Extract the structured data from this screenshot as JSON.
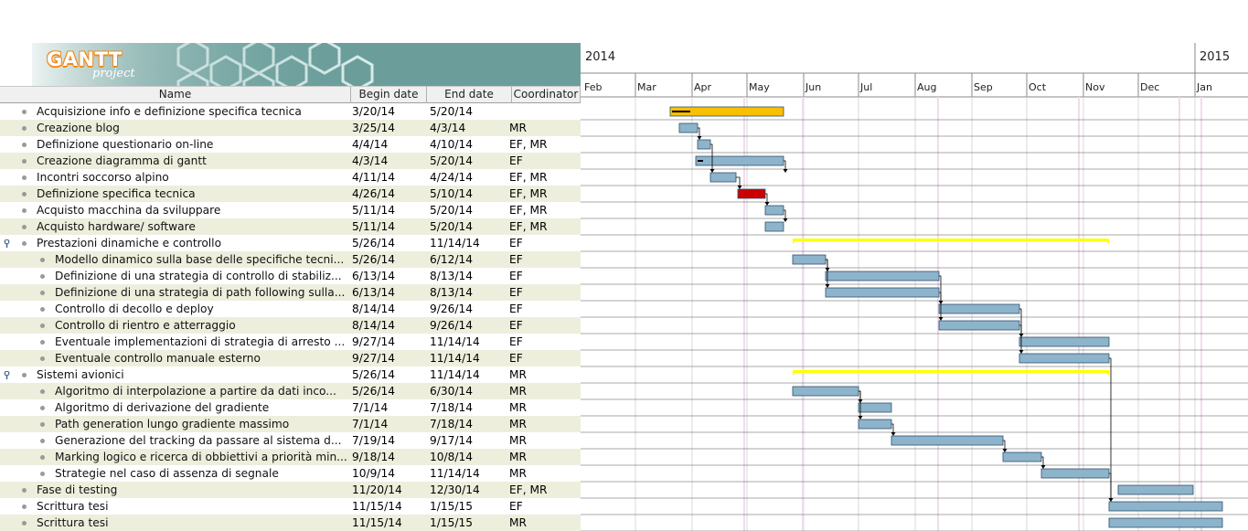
{
  "logo": {
    "text_main": "GANTT",
    "text_sub": "project"
  },
  "columns": {
    "name": "Name",
    "begin": "Begin date",
    "end": "End date",
    "coordinator": "Coordinator"
  },
  "tasks": [
    {
      "name": "Acquisizione info e definizione specifica tecnica",
      "begin": "3/20/14",
      "end": "5/20/14",
      "coordinator": "",
      "level": 0
    },
    {
      "name": "Creazione blog",
      "begin": "3/25/14",
      "end": "4/3/14",
      "coordinator": "MR",
      "level": 0
    },
    {
      "name": "Definizione questionario on-line",
      "begin": "4/4/14",
      "end": "4/10/14",
      "coordinator": "EF, MR",
      "level": 0
    },
    {
      "name": "Creazione diagramma di gantt",
      "begin": "4/3/14",
      "end": "5/20/14",
      "coordinator": "EF",
      "level": 0
    },
    {
      "name": "Incontri soccorso alpino",
      "begin": "4/11/14",
      "end": "4/24/14",
      "coordinator": "EF, MR",
      "level": 0
    },
    {
      "name": "Definizione specifica tecnica",
      "begin": "4/26/14",
      "end": "5/10/14",
      "coordinator": "EF, MR",
      "level": 0
    },
    {
      "name": "Acquisto macchina da sviluppare",
      "begin": "5/11/14",
      "end": "5/20/14",
      "coordinator": "EF, MR",
      "level": 0
    },
    {
      "name": "Acquisto hardware/ software",
      "begin": "5/11/14",
      "end": "5/20/14",
      "coordinator": "EF, MR",
      "level": 0
    },
    {
      "name": "Prestazioni dinamiche e controllo",
      "begin": "5/26/14",
      "end": "11/14/14",
      "coordinator": "EF",
      "level": 0,
      "group": true
    },
    {
      "name": "Modello dinamico sulla base delle specifiche tecni...",
      "begin": "5/26/14",
      "end": "6/12/14",
      "coordinator": "EF",
      "level": 1
    },
    {
      "name": "Definizione di una strategia di controllo di stabiliz...",
      "begin": "6/13/14",
      "end": "8/13/14",
      "coordinator": "EF",
      "level": 1
    },
    {
      "name": "Definizione di una strategia di path following sulla...",
      "begin": "6/13/14",
      "end": "8/13/14",
      "coordinator": "EF",
      "level": 1
    },
    {
      "name": "Controllo di decollo e deploy",
      "begin": "8/14/14",
      "end": "9/26/14",
      "coordinator": "EF",
      "level": 1
    },
    {
      "name": "Controllo di rientro e atterraggio",
      "begin": "8/14/14",
      "end": "9/26/14",
      "coordinator": "EF",
      "level": 1
    },
    {
      "name": "Eventuale implementazioni di strategia di arresto ...",
      "begin": "9/27/14",
      "end": "11/14/14",
      "coordinator": "EF",
      "level": 1
    },
    {
      "name": "Eventuale controllo manuale esterno",
      "begin": "9/27/14",
      "end": "11/14/14",
      "coordinator": "EF",
      "level": 1
    },
    {
      "name": "Sistemi avionici",
      "begin": "5/26/14",
      "end": "11/14/14",
      "coordinator": "MR",
      "level": 0,
      "group": true
    },
    {
      "name": "Algoritmo di interpolazione a partire da dati inco...",
      "begin": "5/26/14",
      "end": "6/30/14",
      "coordinator": "MR",
      "level": 1
    },
    {
      "name": "Algoritmo di derivazione del gradiente",
      "begin": "7/1/14",
      "end": "7/18/14",
      "coordinator": "MR",
      "level": 1
    },
    {
      "name": "Path generation lungo gradiente massimo",
      "begin": "7/1/14",
      "end": "7/18/14",
      "coordinator": "MR",
      "level": 1
    },
    {
      "name": "Generazione del tracking da passare al sistema d...",
      "begin": "7/19/14",
      "end": "9/17/14",
      "coordinator": "MR",
      "level": 1
    },
    {
      "name": "Marking logico e ricerca di obbiettivi a priorità min...",
      "begin": "9/18/14",
      "end": "10/8/14",
      "coordinator": "MR",
      "level": 1
    },
    {
      "name": "Strategie nel caso di assenza di segnale",
      "begin": "10/9/14",
      "end": "11/14/14",
      "coordinator": "MR",
      "level": 1
    },
    {
      "name": "Fase di testing",
      "begin": "11/20/14",
      "end": "12/30/14",
      "coordinator": "EF, MR",
      "level": 0
    },
    {
      "name": "Scrittura tesi",
      "begin": "11/15/14",
      "end": "1/15/15",
      "coordinator": "EF",
      "level": 0
    },
    {
      "name": "Scrittura tesi",
      "begin": "11/15/14",
      "end": "1/15/15",
      "coordinator": "MR",
      "level": 0
    }
  ],
  "timeline": {
    "years": [
      "2014",
      "2015"
    ],
    "months": [
      "Feb",
      "Mar",
      "Apr",
      "May",
      "Jun",
      "Jul",
      "Aug",
      "Sep",
      "Oct",
      "Nov",
      "Dec",
      "Jan"
    ]
  },
  "colors": {
    "bar": "#8eb4cb",
    "bar_border": "#2f4f6f",
    "summary": "#ffff00",
    "highlight_orange": "#f8c000",
    "critical_red": "#cc0000",
    "row_alt": "#eeeedd"
  }
}
